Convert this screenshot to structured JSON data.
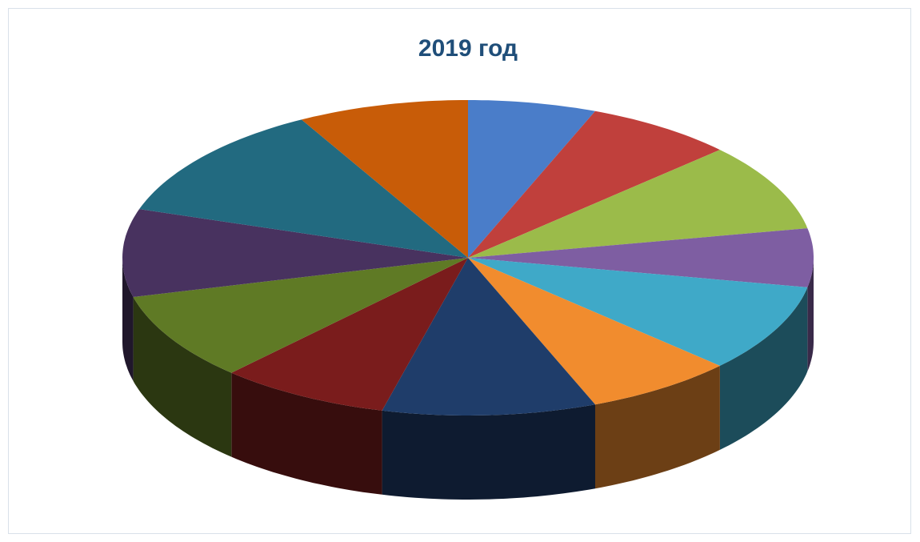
{
  "chart_data": {
    "type": "pie3d",
    "title": "2019 год",
    "values": [
      6,
      7,
      9,
      6,
      9,
      7,
      10,
      8,
      9,
      9,
      12,
      8
    ],
    "colors": [
      "#4a7dc9",
      "#c0403c",
      "#9bbb4a",
      "#7e5ea2",
      "#3fa9c8",
      "#f18c2e",
      "#1f3d6a",
      "#7a1c1c",
      "#5f7a25",
      "#48325f",
      "#226a80",
      "#c85c08"
    ]
  }
}
